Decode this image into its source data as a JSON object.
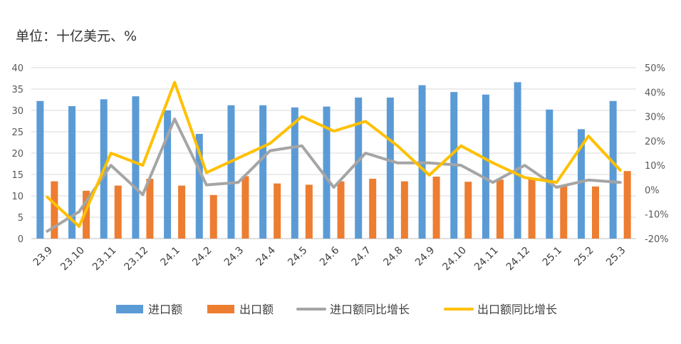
{
  "chart_data": {
    "type": "bar",
    "unit_note": "单位：十亿美元、%",
    "categories": [
      "23.9",
      "23.10",
      "23.11",
      "23.12",
      "24.1",
      "24.2",
      "24.3",
      "24.4",
      "24.5",
      "24.6",
      "24.7",
      "24.8",
      "24.9",
      "24.10",
      "24.11",
      "24.12",
      "25.1",
      "25.2",
      "25.3"
    ],
    "series": [
      {
        "name": "进口额",
        "kind": "bar",
        "axis": "left",
        "color": "#5B9BD5",
        "values": [
          32.2,
          31.0,
          32.6,
          33.3,
          30.0,
          24.5,
          31.2,
          31.2,
          30.7,
          30.9,
          33.0,
          33.0,
          35.9,
          34.3,
          33.7,
          36.6,
          30.2,
          25.6,
          32.2
        ]
      },
      {
        "name": "出口额",
        "kind": "bar",
        "axis": "left",
        "color": "#ED7D31",
        "values": [
          13.4,
          11.2,
          12.4,
          14.0,
          12.4,
          10.2,
          14.6,
          12.9,
          12.6,
          13.4,
          14.0,
          13.4,
          14.5,
          13.3,
          13.8,
          14.2,
          12.4,
          12.2,
          15.8
        ]
      },
      {
        "name": "进口额同比增长",
        "kind": "line",
        "axis": "right",
        "color": "#A5A5A5",
        "values": [
          -17,
          -9,
          10,
          -2,
          29,
          2,
          3,
          16,
          18,
          1,
          15,
          11,
          11,
          10,
          3,
          10,
          1,
          4,
          3
        ]
      },
      {
        "name": "出口额同比增长",
        "kind": "line",
        "axis": "right",
        "color": "#FFC000",
        "values": [
          -3,
          -15,
          15,
          10,
          44,
          7,
          13,
          19,
          30,
          24,
          28,
          18,
          6,
          18,
          11,
          5,
          3,
          22,
          8
        ]
      }
    ],
    "y_left": {
      "min": 0,
      "max": 40,
      "ticks": [
        "0",
        "5",
        "10",
        "15",
        "20",
        "25",
        "30",
        "35",
        "40"
      ]
    },
    "y_right": {
      "min": -20,
      "max": 50,
      "ticks": [
        "-20%",
        "-10%",
        "0%",
        "10%",
        "20%",
        "30%",
        "40%",
        "50%"
      ]
    },
    "grid": true,
    "legend_position": "bottom"
  }
}
